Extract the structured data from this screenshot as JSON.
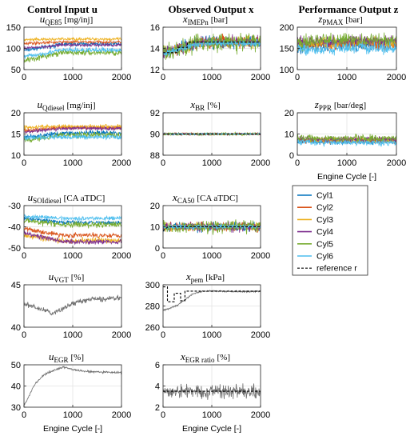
{
  "figure": {
    "column_titles": [
      "Control Input u",
      "Observed Output x",
      "Performance Output z"
    ],
    "legend": [
      "Cyl1",
      "Cyl2",
      "Cyl3",
      "Cyl4",
      "Cyl5",
      "Cyl6",
      "reference r"
    ],
    "colors": {
      "Cyl1": "#0072bd",
      "Cyl2": "#d95319",
      "Cyl3": "#edb120",
      "Cyl4": "#7e2f8e",
      "Cyl5": "#77ac30",
      "Cyl6": "#4dbeee",
      "reference": "#000000",
      "single": "#6e6e6e"
    }
  },
  "chart_data": [
    {
      "id": "u_qe85",
      "type": "line",
      "title_main": "u",
      "title_sub": "QE85",
      "title_unit": "[mg/inj]",
      "xlim": [
        0,
        2000
      ],
      "ylim": [
        50,
        150
      ],
      "yticks": [
        50,
        100,
        150
      ],
      "xticks": [
        0,
        1000,
        2000
      ],
      "series": [
        {
          "name": "Cyl1",
          "y0": 95,
          "y1": 110,
          "noise": 4
        },
        {
          "name": "Cyl2",
          "y0": 112,
          "y1": 115,
          "noise": 3
        },
        {
          "name": "Cyl3",
          "y0": 120,
          "y1": 122,
          "noise": 3
        },
        {
          "name": "Cyl4",
          "y0": 100,
          "y1": 108,
          "noise": 3
        },
        {
          "name": "Cyl5",
          "y0": 72,
          "y1": 90,
          "noise": 6
        },
        {
          "name": "Cyl6",
          "y0": 80,
          "y1": 96,
          "noise": 5
        }
      ]
    },
    {
      "id": "u_qdiesel",
      "type": "line",
      "title_main": "u",
      "title_sub": "Qdiesel",
      "title_unit": "[mg/inj]",
      "xlim": [
        0,
        2000
      ],
      "ylim": [
        10,
        20
      ],
      "yticks": [
        10,
        15,
        20
      ],
      "xticks": [
        0,
        1000,
        2000
      ],
      "series": [
        {
          "name": "Cyl1",
          "y0": 14.2,
          "y1": 15.2,
          "noise": 0.5
        },
        {
          "name": "Cyl2",
          "y0": 15.8,
          "y1": 16.5,
          "noise": 0.4
        },
        {
          "name": "Cyl3",
          "y0": 16.6,
          "y1": 16.8,
          "noise": 0.4
        },
        {
          "name": "Cyl4",
          "y0": 15.5,
          "y1": 16.3,
          "noise": 0.4
        },
        {
          "name": "Cyl5",
          "y0": 13.5,
          "y1": 14.8,
          "noise": 0.6
        },
        {
          "name": "Cyl6",
          "y0": 14.0,
          "y1": 14.3,
          "noise": 0.5
        }
      ]
    },
    {
      "id": "u_soidiesel",
      "type": "line",
      "title_main": "u",
      "title_sub": "SOIdiesel",
      "title_unit": "[CA aTDC]",
      "xlim": [
        0,
        2000
      ],
      "ylim": [
        -50,
        -30
      ],
      "yticks": [
        -50,
        -40,
        -30
      ],
      "xticks": [
        0,
        1000,
        2000
      ],
      "series": [
        {
          "name": "Cyl1",
          "y0": -36,
          "y1": -38,
          "noise": 0.8
        },
        {
          "name": "Cyl2",
          "y0": -41,
          "y1": -44,
          "noise": 1.0
        },
        {
          "name": "Cyl3",
          "y0": -44,
          "y1": -46.5,
          "noise": 1.2
        },
        {
          "name": "Cyl4",
          "y0": -43,
          "y1": -47,
          "noise": 1.0
        },
        {
          "name": "Cyl5",
          "y0": -37,
          "y1": -39,
          "noise": 1.2
        },
        {
          "name": "Cyl6",
          "y0": -35,
          "y1": -36,
          "noise": 0.8
        }
      ]
    },
    {
      "id": "u_vgt",
      "type": "line",
      "title_main": "u",
      "title_sub": "VGT",
      "title_unit": "[%]",
      "xlim": [
        0,
        2000
      ],
      "ylim": [
        40,
        45
      ],
      "yticks": [
        40,
        45
      ],
      "xticks": [
        0,
        1000,
        2000
      ],
      "series": [
        {
          "name": "VGT",
          "points": [
            [
              0,
              42.8
            ],
            [
              200,
              42.4
            ],
            [
              400,
              42.0
            ],
            [
              600,
              41.6
            ],
            [
              800,
              42.2
            ],
            [
              1000,
              42.8
            ],
            [
              1200,
              43.1
            ],
            [
              1400,
              43.3
            ],
            [
              1600,
              43.3
            ],
            [
              1800,
              43.4
            ],
            [
              2000,
              43.5
            ]
          ],
          "noise": 0.25
        }
      ]
    },
    {
      "id": "u_egr",
      "type": "line",
      "title_main": "u",
      "title_sub": "EGR",
      "title_unit": "[%]",
      "xlim": [
        0,
        2000
      ],
      "ylim": [
        30,
        50
      ],
      "yticks": [
        30,
        40,
        50
      ],
      "xticks": [
        0,
        1000,
        2000
      ],
      "xlabel": "Engine Cycle [-]",
      "series": [
        {
          "name": "EGR",
          "points": [
            [
              0,
              31
            ],
            [
              100,
              35
            ],
            [
              200,
              40
            ],
            [
              350,
              44
            ],
            [
              500,
              46.5
            ],
            [
              700,
              48
            ],
            [
              800,
              49
            ],
            [
              1000,
              47.8
            ],
            [
              1200,
              47
            ],
            [
              1500,
              46.6
            ],
            [
              2000,
              46.3
            ]
          ],
          "noise": 0.4
        }
      ]
    },
    {
      "id": "x_imepn",
      "type": "line",
      "title_main": "x",
      "title_sub": "IMEPn",
      "title_unit": "[bar]",
      "xlim": [
        0,
        2000
      ],
      "ylim": [
        12,
        16
      ],
      "yticks": [
        12,
        14,
        16
      ],
      "xticks": [
        0,
        1000,
        2000
      ],
      "series": [
        {
          "name": "Cyl1",
          "y0": 13.6,
          "y1": 14.6,
          "noise": 0.5
        },
        {
          "name": "Cyl2",
          "y0": 13.6,
          "y1": 14.6,
          "noise": 0.5
        },
        {
          "name": "Cyl3",
          "y0": 13.6,
          "y1": 14.6,
          "noise": 0.5
        },
        {
          "name": "Cyl4",
          "y0": 13.6,
          "y1": 14.6,
          "noise": 0.5
        },
        {
          "name": "Cyl5",
          "y0": 13.6,
          "y1": 14.6,
          "noise": 0.75
        },
        {
          "name": "Cyl6",
          "y0": 13.5,
          "y1": 14.5,
          "noise": 0.25
        },
        {
          "name": "reference r",
          "points": [
            [
              0,
              13.6
            ],
            [
              300,
              13.6
            ],
            [
              300,
              14.1
            ],
            [
              500,
              14.1
            ],
            [
              500,
              14.6
            ],
            [
              2000,
              14.6
            ]
          ]
        }
      ]
    },
    {
      "id": "x_br",
      "type": "line",
      "title_main": "x",
      "title_sub": "BR",
      "title_unit": "[%]",
      "xlim": [
        0,
        2000
      ],
      "ylim": [
        88,
        92
      ],
      "yticks": [
        88,
        90,
        92
      ],
      "xticks": [
        0,
        1000,
        2000
      ],
      "series": [
        {
          "name": "Cyl1",
          "y0": 90,
          "y1": 90,
          "noise": 0.08
        },
        {
          "name": "Cyl2",
          "y0": 90,
          "y1": 90,
          "noise": 0.08
        },
        {
          "name": "Cyl3",
          "y0": 90,
          "y1": 90,
          "noise": 0.08
        },
        {
          "name": "Cyl4",
          "y0": 90,
          "y1": 90,
          "noise": 0.08
        },
        {
          "name": "Cyl5",
          "y0": 90,
          "y1": 90,
          "noise": 0.1
        },
        {
          "name": "Cyl6",
          "y0": 90,
          "y1": 90,
          "noise": 0.05
        },
        {
          "name": "reference r",
          "points": [
            [
              0,
              90
            ],
            [
              2000,
              90
            ]
          ]
        }
      ]
    },
    {
      "id": "x_ca50",
      "type": "line",
      "title_main": "x",
      "title_sub": "CA50",
      "title_unit": "[CA aTDC]",
      "xlim": [
        0,
        2000
      ],
      "ylim": [
        0,
        20
      ],
      "yticks": [
        0,
        10,
        20
      ],
      "xticks": [
        0,
        1000,
        2000
      ],
      "series": [
        {
          "name": "Cyl1",
          "y0": 10,
          "y1": 10,
          "noise": 1.8
        },
        {
          "name": "Cyl2",
          "y0": 10,
          "y1": 10,
          "noise": 1.8
        },
        {
          "name": "Cyl3",
          "y0": 10,
          "y1": 10,
          "noise": 1.8
        },
        {
          "name": "Cyl4",
          "y0": 10,
          "y1": 10,
          "noise": 1.8
        },
        {
          "name": "Cyl5",
          "y0": 10,
          "y1": 10,
          "noise": 2.6
        },
        {
          "name": "Cyl6",
          "y0": 10,
          "y1": 10,
          "noise": 0.9
        },
        {
          "name": "reference r",
          "points": [
            [
              0,
              8
            ],
            [
              100,
              10
            ],
            [
              2000,
              10
            ]
          ]
        }
      ]
    },
    {
      "id": "x_pem",
      "type": "line",
      "title_main": "x",
      "title_sub": "pem",
      "title_unit": "[kPa]",
      "xlim": [
        0,
        2000
      ],
      "ylim": [
        260,
        300
      ],
      "yticks": [
        260,
        280,
        300
      ],
      "xticks": [
        0,
        1000,
        2000
      ],
      "series": [
        {
          "name": "pem",
          "points": [
            [
              0,
              276
            ],
            [
              150,
              278
            ],
            [
              300,
              281
            ],
            [
              450,
              286
            ],
            [
              600,
              291
            ],
            [
              800,
              294
            ],
            [
              1000,
              294
            ],
            [
              1500,
              293.5
            ],
            [
              2000,
              293.5
            ]
          ],
          "noise": 0.7
        },
        {
          "name": "reference r",
          "points": [
            [
              0,
              298
            ],
            [
              90,
              298
            ],
            [
              90,
              284
            ],
            [
              230,
              284
            ],
            [
              230,
              292
            ],
            [
              360,
              292
            ],
            [
              360,
              285
            ],
            [
              450,
              285
            ],
            [
              450,
              294
            ],
            [
              2000,
              294
            ]
          ]
        }
      ]
    },
    {
      "id": "x_egr_ratio",
      "type": "line",
      "title_main": "x",
      "title_sub": "EGR ratio",
      "title_unit": "[%]",
      "xlim": [
        0,
        2000
      ],
      "ylim": [
        2,
        6
      ],
      "yticks": [
        2,
        4,
        6
      ],
      "xticks": [
        0,
        1000,
        2000
      ],
      "xlabel": "Engine Cycle [-]",
      "series": [
        {
          "name": "EGR ratio",
          "points": [
            [
              0,
              3.5
            ],
            [
              2000,
              3.5
            ]
          ],
          "noise": 0.5
        },
        {
          "name": "reference r",
          "points": [
            [
              0,
              3.5
            ],
            [
              2000,
              3.5
            ]
          ]
        }
      ]
    },
    {
      "id": "z_pmax",
      "type": "line",
      "title_main": "z",
      "title_sub": "PMAX",
      "title_unit": "[bar]",
      "xlim": [
        0,
        2000
      ],
      "ylim": [
        100,
        200
      ],
      "yticks": [
        100,
        150,
        200
      ],
      "xticks": [
        0,
        1000,
        2000
      ],
      "series": [
        {
          "name": "Cyl1",
          "y0": 155,
          "y1": 160,
          "noise": 12
        },
        {
          "name": "Cyl2",
          "y0": 158,
          "y1": 160,
          "noise": 12
        },
        {
          "name": "Cyl3",
          "y0": 160,
          "y1": 163,
          "noise": 12
        },
        {
          "name": "Cyl4",
          "y0": 165,
          "y1": 168,
          "noise": 12
        },
        {
          "name": "Cyl5",
          "y0": 165,
          "y1": 170,
          "noise": 14
        },
        {
          "name": "Cyl6",
          "y0": 148,
          "y1": 150,
          "noise": 12
        }
      ]
    },
    {
      "id": "z_ppr",
      "type": "line",
      "title_main": "z",
      "title_sub": "PPR",
      "title_unit": "[bar/deg]",
      "xlim": [
        0,
        2000
      ],
      "ylim": [
        0,
        20
      ],
      "yticks": [
        0,
        10,
        20
      ],
      "xticks": [
        0,
        1000,
        2000
      ],
      "xlabel": "Engine Cycle [-]",
      "series": [
        {
          "name": "Cyl1",
          "y0": 6.5,
          "y1": 6.5,
          "noise": 1.2
        },
        {
          "name": "Cyl2",
          "y0": 7,
          "y1": 7,
          "noise": 1.2
        },
        {
          "name": "Cyl3",
          "y0": 7,
          "y1": 7,
          "noise": 1.2
        },
        {
          "name": "Cyl4",
          "y0": 7.5,
          "y1": 7.5,
          "noise": 1.2
        },
        {
          "name": "Cyl5",
          "y0": 8,
          "y1": 8,
          "noise": 1.5
        },
        {
          "name": "Cyl6",
          "y0": 6,
          "y1": 6,
          "noise": 1.2
        }
      ]
    }
  ]
}
